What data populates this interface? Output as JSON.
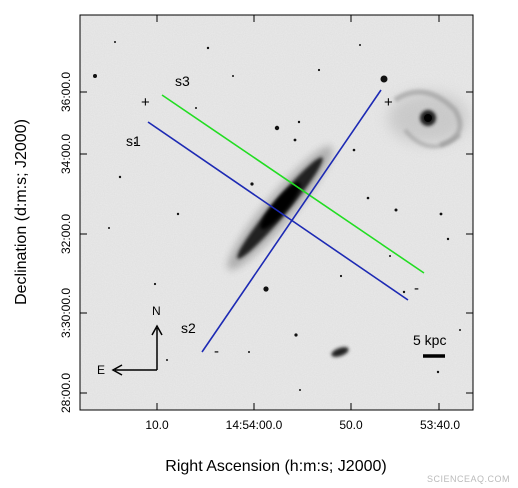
{
  "axes": {
    "xlabel": "Right Ascension (h:m:s; J2000)",
    "ylabel": "Declination (d:m:s; J2000)",
    "xticks": [
      "10.0",
      "14:54:00.0",
      "50.0",
      "53:40.0"
    ],
    "yticks": [
      "36:00.0",
      "34:00.0",
      "32:00.0",
      "3:30:00.0",
      "28:00.0"
    ]
  },
  "slits": [
    {
      "id": "s1",
      "label": "s1",
      "color": "#1d2ab4",
      "plus": "",
      "minus": "-"
    },
    {
      "id": "s2",
      "label": "s2",
      "color": "#1d2ab4",
      "plus": "+",
      "minus": "-"
    },
    {
      "id": "s3",
      "label": "s3",
      "color": "#22dd22",
      "plus": "+",
      "minus": ""
    }
  ],
  "compass": {
    "north": "N",
    "east": "E"
  },
  "scalebar": {
    "label": "5 kpc"
  },
  "watermark": "SCIENCEAQ.COM"
}
